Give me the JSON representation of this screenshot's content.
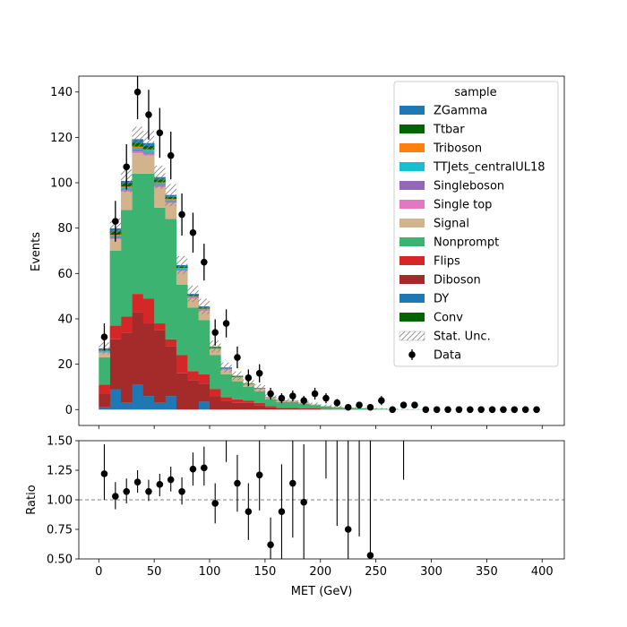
{
  "chart_data": {
    "type": "bar",
    "stacked": true,
    "xlabel": "MET (GeV)",
    "xlim": [
      -18,
      420
    ],
    "x_ticks": [
      0,
      50,
      100,
      150,
      200,
      250,
      300,
      350,
      400
    ],
    "bin_edges": [
      0,
      10,
      20,
      30,
      40,
      50,
      60,
      70,
      80,
      90,
      100,
      110,
      120,
      130,
      140,
      150,
      160,
      170,
      180,
      190,
      200,
      210,
      220,
      230,
      240,
      250,
      260,
      270,
      280,
      290,
      300,
      310,
      320,
      330,
      340,
      350,
      360,
      370,
      380,
      390,
      400
    ],
    "main": {
      "ylabel": "Events",
      "ylim": [
        -7,
        147
      ],
      "y_ticks": [
        0,
        20,
        40,
        60,
        80,
        100,
        120,
        140
      ],
      "legend": {
        "title": "sample",
        "placement": "top-right"
      },
      "stat_unc_label": "Stat. Unc.",
      "data_label": "Data",
      "stack": [
        {
          "name": "DY",
          "color": "#1f77b4",
          "values": [
            1,
            9,
            3,
            11,
            6,
            3,
            6,
            0,
            0,
            3.5,
            0,
            0,
            0,
            0,
            0,
            0,
            0,
            0,
            0,
            0,
            0,
            0,
            0,
            0,
            0,
            0,
            0,
            0,
            0,
            0,
            0,
            0,
            0,
            0,
            0,
            0,
            0,
            0,
            0,
            0
          ]
        },
        {
          "name": "Diboson",
          "color": "#a52a2a",
          "values": [
            6,
            22,
            31,
            32,
            32,
            32,
            22,
            16,
            13,
            8,
            6,
            4,
            3,
            3,
            2,
            1,
            0.5,
            0.5,
            0.3,
            0.3,
            0.2,
            0.1,
            0.1,
            0.1,
            0.1,
            0,
            0,
            0,
            0,
            0,
            0,
            0,
            0,
            0,
            0,
            0,
            0,
            0,
            0,
            0
          ]
        },
        {
          "name": "Flips",
          "color": "#d62728",
          "values": [
            4,
            6,
            7,
            8,
            11,
            3,
            3,
            8,
            4,
            4,
            3,
            1.5,
            1.5,
            1,
            1,
            0.5,
            0.3,
            0.3,
            0.2,
            0.2,
            0.1,
            0.1,
            0.1,
            0,
            0,
            0,
            0,
            0,
            0,
            0,
            0,
            0,
            0,
            0,
            0,
            0,
            0,
            0,
            0,
            0
          ]
        },
        {
          "name": "Nonprompt",
          "color": "#3cb371",
          "values": [
            12,
            33,
            47,
            53,
            55,
            51,
            53,
            31,
            28,
            24,
            15,
            10,
            8,
            6,
            5,
            3,
            2.5,
            2.5,
            2,
            1.5,
            1,
            0.8,
            0.5,
            0.5,
            0.3,
            0.3,
            0.2,
            0.1,
            0.1,
            0,
            0,
            0,
            0,
            0,
            0,
            0,
            0,
            0,
            0,
            0
          ]
        },
        {
          "name": "Signal",
          "color": "#d2b48c",
          "values": [
            2,
            5,
            8,
            9,
            8,
            9,
            7,
            6,
            4,
            4,
            2.5,
            2,
            1.5,
            1,
            1,
            0.8,
            0.6,
            0.5,
            0.4,
            0.3,
            0.3,
            0.2,
            0.2,
            0.1,
            0.1,
            0.1,
            0,
            0,
            0,
            0,
            0,
            0,
            0,
            0,
            0,
            0,
            0,
            0,
            0,
            0
          ]
        },
        {
          "name": "Single top",
          "color": "#e377c2",
          "values": [
            0.3,
            0.5,
            0.6,
            0.8,
            0.7,
            0.6,
            0.5,
            0.4,
            0.3,
            0.3,
            0.2,
            0.2,
            0.1,
            0.1,
            0.1,
            0,
            0,
            0,
            0,
            0,
            0,
            0,
            0,
            0,
            0,
            0,
            0,
            0,
            0,
            0,
            0,
            0,
            0,
            0,
            0,
            0,
            0,
            0,
            0,
            0
          ]
        },
        {
          "name": "Singleboson",
          "color": "#9467bd",
          "values": [
            0.2,
            0.4,
            0.5,
            0.6,
            0.5,
            0.4,
            0.4,
            0.3,
            0.2,
            0.2,
            0.1,
            0.1,
            0.1,
            0,
            0,
            0,
            0,
            0,
            0,
            0,
            0,
            0,
            0,
            0,
            0,
            0,
            0,
            0,
            0,
            0,
            0,
            0,
            0,
            0,
            0,
            0,
            0,
            0,
            0,
            0
          ]
        },
        {
          "name": "TTJets_centralUL18",
          "color": "#17becf",
          "values": [
            0.3,
            0.8,
            0.8,
            1,
            1,
            0.8,
            0.5,
            0.4,
            0.3,
            0.3,
            0.2,
            0.2,
            0.1,
            0.1,
            0.1,
            0,
            0,
            0,
            0,
            0,
            0,
            0,
            0,
            0,
            0,
            0,
            0,
            0,
            0,
            0,
            0,
            0,
            0,
            0,
            0,
            0,
            0,
            0,
            0,
            0
          ]
        },
        {
          "name": "Triboson",
          "color": "#ff7f0e",
          "values": [
            0.2,
            0.4,
            0.4,
            0.5,
            0.5,
            0.4,
            0.4,
            0.3,
            0.2,
            0.2,
            0.1,
            0.1,
            0.1,
            0.1,
            0.1,
            0,
            0,
            0,
            0,
            0,
            0,
            0,
            0,
            0,
            0,
            0,
            0,
            0,
            0,
            0,
            0,
            0,
            0,
            0,
            0,
            0,
            0,
            0,
            0,
            0
          ]
        },
        {
          "name": "Ttbar",
          "color": "#006400",
          "values": [
            0.5,
            1.5,
            1.5,
            1.8,
            1.5,
            1.3,
            1,
            0.8,
            0.6,
            0.5,
            0.4,
            0.3,
            0.3,
            0.2,
            0.2,
            0.1,
            0.1,
            0.1,
            0.1,
            0,
            0,
            0,
            0,
            0,
            0,
            0,
            0,
            0,
            0,
            0,
            0,
            0,
            0,
            0,
            0,
            0,
            0,
            0,
            0,
            0
          ]
        },
        {
          "name": "ZGamma",
          "color": "#1f77b4",
          "values": [
            0.5,
            1.3,
            1,
            1.5,
            1.3,
            1,
            0.8,
            0.5,
            0.4,
            0.5,
            0.3,
            0.2,
            0.2,
            0.1,
            0.1,
            0.1,
            0,
            0,
            0,
            0,
            0,
            0,
            0,
            0,
            0,
            0,
            0,
            0,
            0,
            0,
            0,
            0,
            0,
            0,
            0,
            0,
            0,
            0,
            0,
            0
          ]
        }
      ],
      "legend_extra": [
        {
          "name": "Conv",
          "color": "#006400"
        }
      ],
      "data": {
        "x": [
          5,
          15,
          25,
          35,
          45,
          55,
          65,
          75,
          85,
          95,
          105,
          115,
          125,
          135,
          145,
          155,
          165,
          175,
          185,
          195,
          205,
          215,
          225,
          235,
          245,
          255,
          265,
          275,
          285,
          295,
          305,
          315,
          325,
          335,
          345,
          355,
          365,
          375,
          385,
          395
        ],
        "y": [
          32,
          83,
          107,
          140,
          130,
          122,
          112,
          86,
          78,
          65,
          34,
          38,
          23,
          14,
          16,
          7,
          5,
          6,
          4,
          7,
          5,
          3,
          1,
          2,
          1,
          4,
          0,
          2,
          2,
          0,
          0,
          0,
          0,
          0,
          0,
          0,
          0,
          0,
          0,
          0
        ],
        "err": [
          6,
          9,
          10,
          12,
          11,
          11,
          10.5,
          9.3,
          8.8,
          8.1,
          5.8,
          6.2,
          4.8,
          3.7,
          4,
          2.6,
          2.2,
          2.4,
          2,
          2.6,
          2.2,
          1.7,
          1,
          1.4,
          1,
          2,
          0,
          1.4,
          1.4,
          0,
          0,
          0,
          0,
          0,
          0,
          0,
          0,
          0,
          0,
          0
        ]
      }
    },
    "ratio": {
      "ylabel": "Ratio",
      "ylim": [
        0.5,
        1.5
      ],
      "y_ticks": [
        "0.50",
        "0.75",
        "1.00",
        "1.25",
        "1.50"
      ],
      "reference": 1.0,
      "points": [
        {
          "x": 5,
          "y": 1.22,
          "lo": 1.0,
          "hi": 1.47
        },
        {
          "x": 15,
          "y": 1.03,
          "lo": 0.92,
          "hi": 1.15
        },
        {
          "x": 25,
          "y": 1.07,
          "lo": 0.97,
          "hi": 1.18
        },
        {
          "x": 35,
          "y": 1.15,
          "lo": 1.06,
          "hi": 1.25
        },
        {
          "x": 45,
          "y": 1.07,
          "lo": 0.99,
          "hi": 1.17
        },
        {
          "x": 55,
          "y": 1.13,
          "lo": 1.03,
          "hi": 1.22
        },
        {
          "x": 65,
          "y": 1.17,
          "lo": 1.07,
          "hi": 1.28
        },
        {
          "x": 75,
          "y": 1.07,
          "lo": 0.96,
          "hi": 1.19
        },
        {
          "x": 85,
          "y": 1.26,
          "lo": 1.12,
          "hi": 1.4
        },
        {
          "x": 95,
          "y": 1.27,
          "lo": 1.12,
          "hi": 1.45
        },
        {
          "x": 105,
          "y": 0.97,
          "lo": 0.8,
          "hi": 1.14
        },
        {
          "x": 115,
          "y": null,
          "lo": 1.32,
          "hi": 1.5
        },
        {
          "x": 125,
          "y": 1.14,
          "lo": 0.9,
          "hi": 1.38
        },
        {
          "x": 135,
          "y": 0.9,
          "lo": 0.66,
          "hi": 1.14
        },
        {
          "x": 145,
          "y": 1.21,
          "lo": 0.91,
          "hi": 1.5
        },
        {
          "x": 155,
          "y": 0.62,
          "lo": 0.39,
          "hi": 0.85
        },
        {
          "x": 165,
          "y": 0.9,
          "lo": 0.5,
          "hi": 1.3
        },
        {
          "x": 175,
          "y": 1.14,
          "lo": 0.68,
          "hi": 1.5
        },
        {
          "x": 185,
          "y": 0.98,
          "lo": 0.5,
          "hi": 1.47
        },
        {
          "x": 205,
          "y": null,
          "lo": 1.18,
          "hi": 1.5
        },
        {
          "x": 215,
          "y": null,
          "lo": 0.78,
          "hi": 1.5
        },
        {
          "x": 225,
          "y": 0.75,
          "lo": 0.5,
          "hi": 1.5
        },
        {
          "x": 235,
          "y": null,
          "lo": 0.69,
          "hi": 1.5
        },
        {
          "x": 245,
          "y": 0.53,
          "lo": 0.5,
          "hi": 1.5
        },
        {
          "x": 275,
          "y": null,
          "lo": 1.17,
          "hi": 1.5
        }
      ]
    }
  }
}
